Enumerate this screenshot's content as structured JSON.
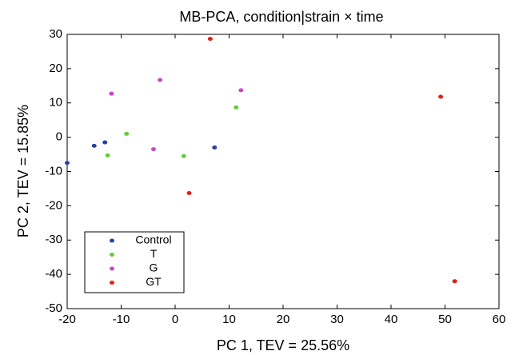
{
  "chart_data": {
    "type": "scatter",
    "title": "MB-PCA, condition|strain × time",
    "x_label": "PC 1, TEV = 25.56%",
    "y_label": "PC 2, TEV = 15.85%",
    "xlim": [
      -20,
      60
    ],
    "xticks": [
      -20,
      -10,
      0,
      10,
      20,
      30,
      40,
      50,
      60
    ],
    "ylim": [
      -50,
      30
    ],
    "yticks": [
      -50,
      -40,
      -30,
      -20,
      -10,
      0,
      10,
      20,
      30
    ],
    "legend_position": "lower left",
    "series": [
      {
        "name": "Control",
        "color": "#2b3f9e",
        "x": [
          -20,
          -15,
          -13,
          7.3
        ],
        "values": [
          -7.5,
          -2.5,
          -1.5,
          -3
        ]
      },
      {
        "name": "T",
        "color": "#66cc33",
        "x": [
          -12.5,
          -9,
          1.6,
          11.3
        ],
        "values": [
          -5.3,
          1,
          -5.5,
          8.7
        ]
      },
      {
        "name": "G",
        "color": "#cc44cc",
        "x": [
          -11.8,
          -2.8,
          -4,
          12.2
        ],
        "values": [
          12.7,
          16.7,
          -3.5,
          13.7
        ]
      },
      {
        "name": "GT",
        "color": "#dd2211",
        "x": [
          6.5,
          49.2,
          2.6,
          51.8
        ],
        "values": [
          28.7,
          11.8,
          -16.3,
          -42
        ]
      }
    ]
  }
}
